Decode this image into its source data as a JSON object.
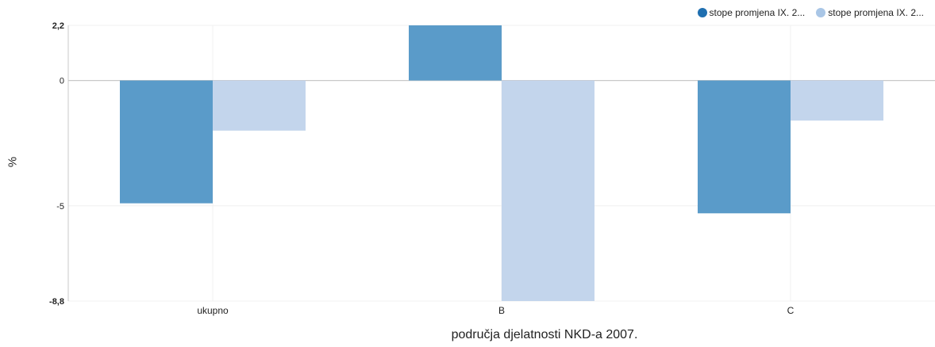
{
  "chart_data": {
    "type": "bar",
    "categories": [
      "ukupno",
      "B",
      "C"
    ],
    "series": [
      {
        "name": "stope promjena IX. 2...",
        "values": [
          -4.9,
          2.2,
          -5.3
        ],
        "color": "#5a9bc9"
      },
      {
        "name": "stope promjena IX. 2...",
        "values": [
          -2.0,
          -8.8,
          -1.6
        ],
        "color": "#c3d5ec"
      }
    ],
    "legend_colors": [
      "#1f6fb0",
      "#a9c6e6"
    ],
    "xlabel": "područja djelatnosti NKD-a 2007.",
    "ylabel": "%",
    "ylim": [
      -8.8,
      2.2
    ],
    "yticks": [
      2.2,
      0,
      -5,
      -8.8
    ],
    "ytick_labels": [
      "2,2",
      "0",
      "-5",
      "-8,8"
    ],
    "ytick_bold": [
      true,
      false,
      false,
      true
    ],
    "legend_position": "top-right",
    "grid": true
  }
}
